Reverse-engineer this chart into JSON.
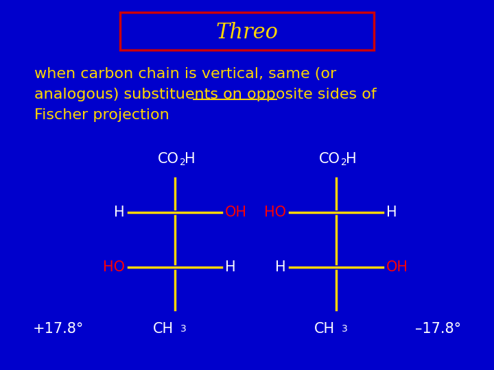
{
  "bg_color": "#0000CC",
  "title": "Threo",
  "title_color": "#FFD700",
  "title_box_color": "#CC0000",
  "title_fontsize": 22,
  "desc_line1": "when carbon chain is vertical, same (or",
  "desc_line2_pre": "analogous) substituents on ",
  "desc_line2_under": "opposite sides",
  "desc_line2_post": " of",
  "desc_line3": "Fischer projection",
  "desc_color": "#FFD700",
  "desc_fontsize": 16,
  "line_color": "#FFD700",
  "red_color": "#FF0000",
  "white_color": "#FFFFFF",
  "fig_width": 7.2,
  "fig_height": 5.4,
  "dpi": 100
}
